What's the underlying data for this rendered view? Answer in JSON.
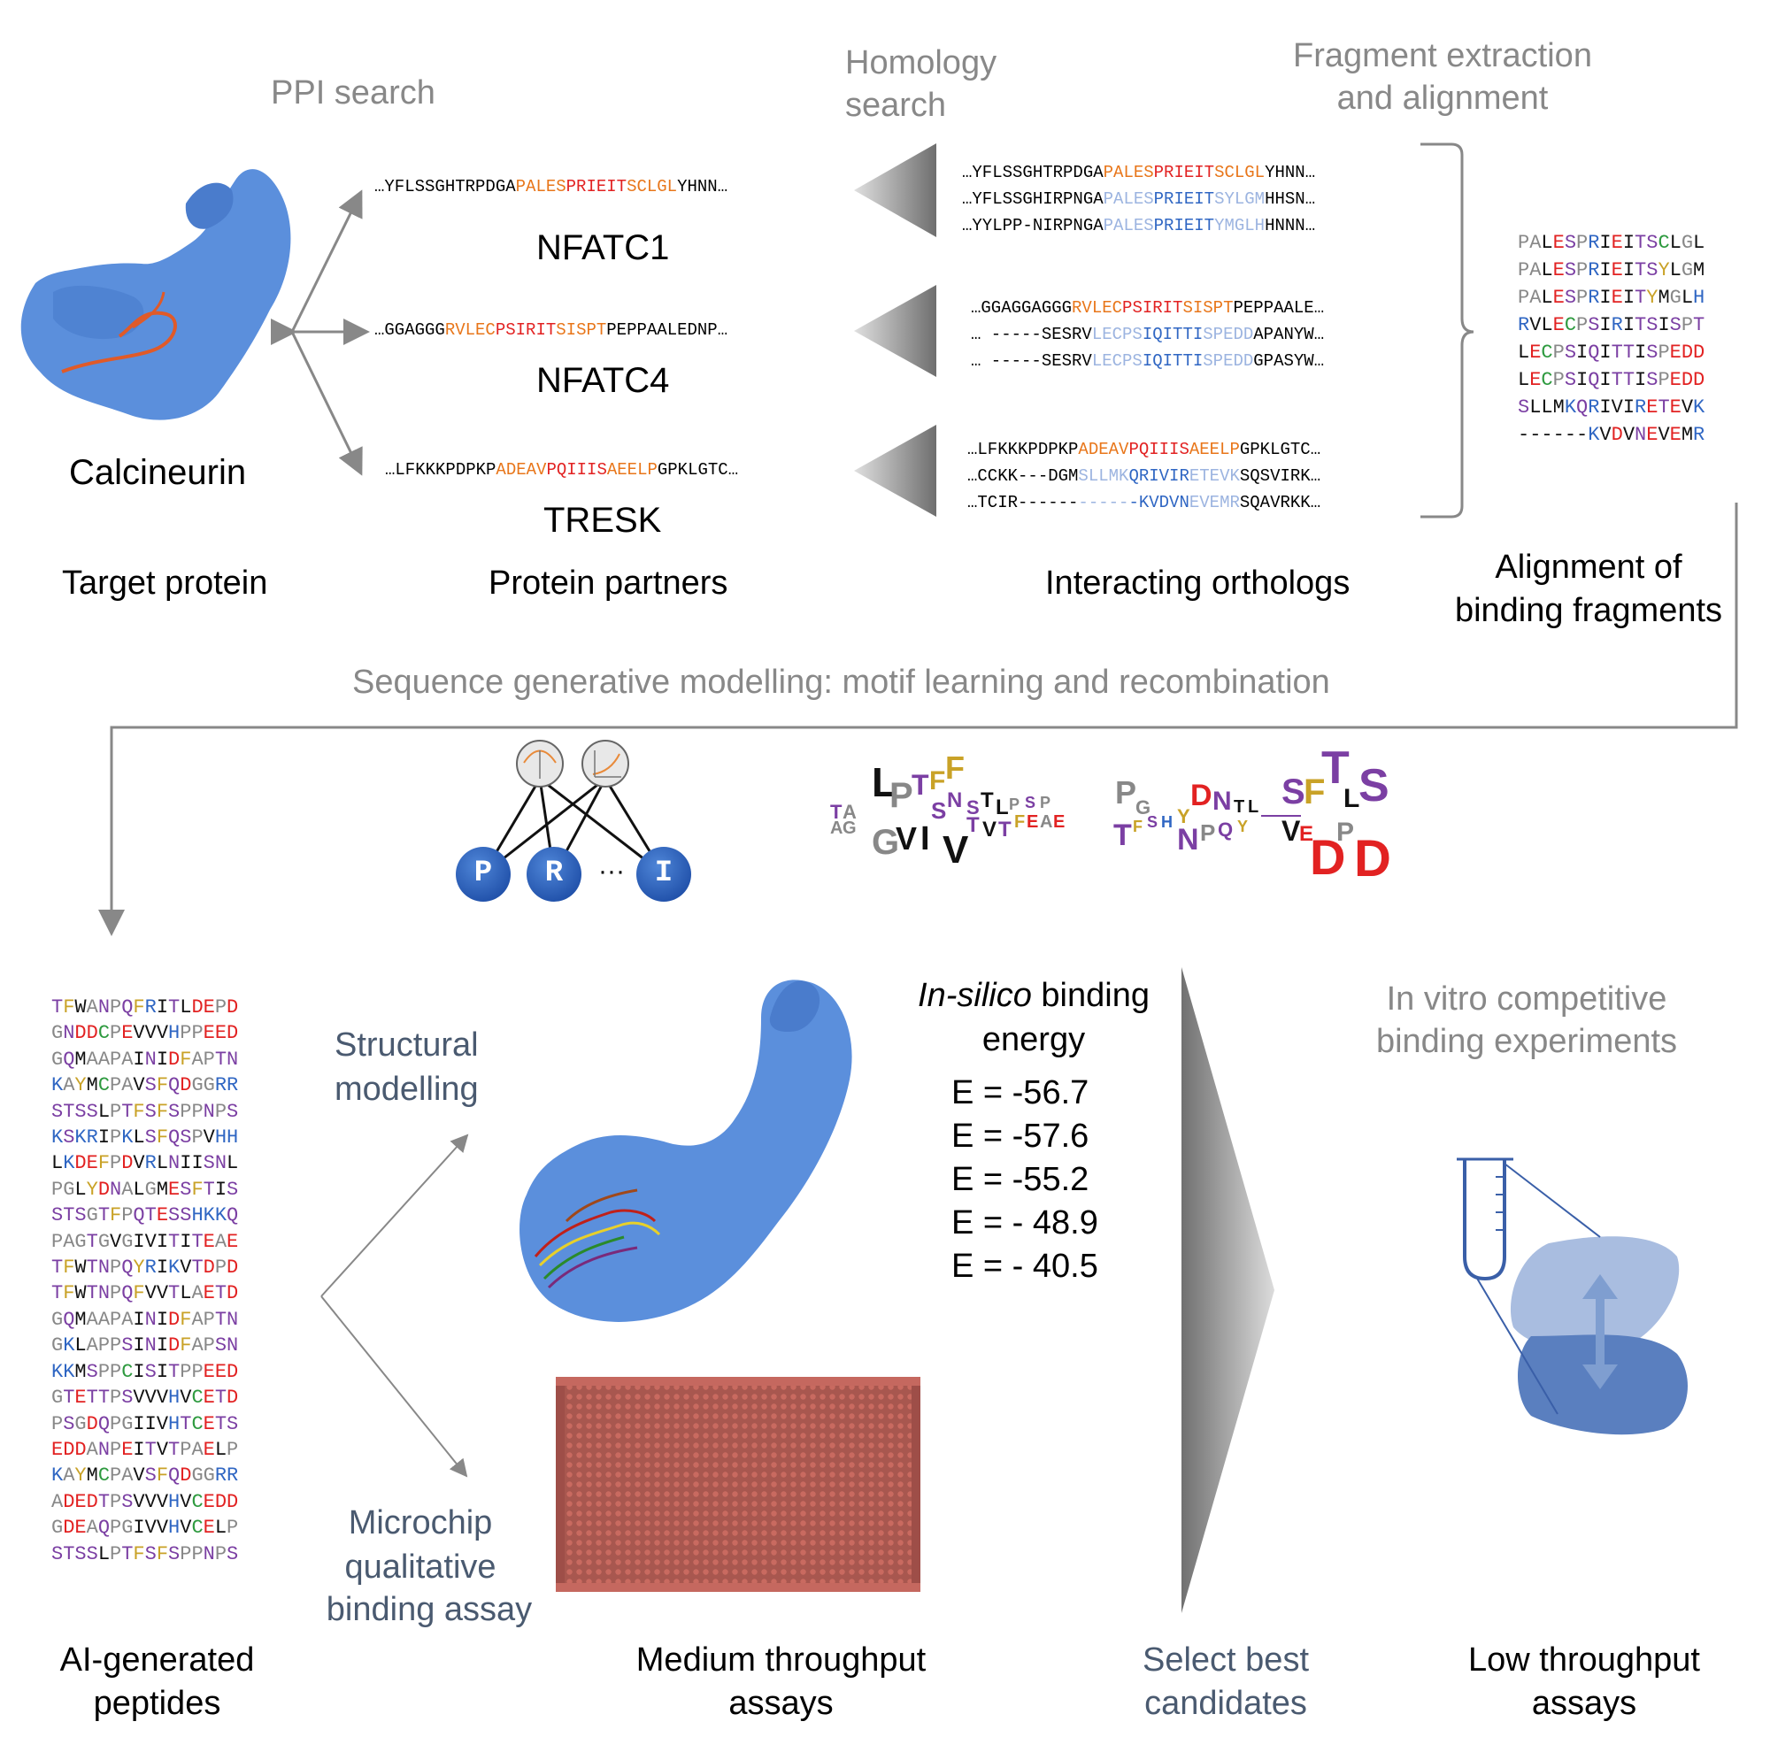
{
  "colors": {
    "protein_blue": "#5b8fdc",
    "orange": "#e8761a",
    "red": "#e22222",
    "lightblue": "#9cb4e0",
    "blue": "#2f66c3",
    "gray_text": "#888888",
    "slate_text": "#4a5a70",
    "aa_palette": {
      "A": "#888888",
      "P": "#888888",
      "L": "#111111",
      "E": "#e22222",
      "D": "#e22222",
      "S": "#7b3fa3",
      "R": "#2f66c3",
      "K": "#2f66c3",
      "H": "#2f66c3",
      "I": "#111111",
      "T": "#7b3fa3",
      "C": "#2e9a3f",
      "G": "#888888",
      "M": "#111111",
      "V": "#111111",
      "Q": "#7b3fa3",
      "N": "#7b3fa3",
      "Y": "#c9a227",
      "F": "#c9a227",
      "W": "#111111"
    }
  },
  "top": {
    "ppi_search": "PPI search",
    "homology_search": [
      "Homology",
      "search"
    ],
    "fragment_extraction": [
      "Fragment extraction",
      "and alignment"
    ],
    "calcineurin": "Calcineurin",
    "partners": [
      {
        "name": "NFATC1",
        "seq": [
          {
            "t": "…YFLSSGHTRPDGA",
            "c": "k"
          },
          {
            "t": "PALES",
            "c": "o"
          },
          {
            "t": "PRIEIT",
            "c": "r"
          },
          {
            "t": "SCLGL",
            "c": "o"
          },
          {
            "t": "YHNN…",
            "c": "k"
          }
        ]
      },
      {
        "name": "NFATC4",
        "seq": [
          {
            "t": "…GGAGGG",
            "c": "k"
          },
          {
            "t": "RVLEC",
            "c": "o"
          },
          {
            "t": "PSIRIT",
            "c": "r"
          },
          {
            "t": "SISPT",
            "c": "o"
          },
          {
            "t": "PEPPAALEDNP…",
            "c": "k"
          }
        ]
      },
      {
        "name": "TRESK",
        "seq": [
          {
            "t": "…LFKKKPDPKP",
            "c": "k"
          },
          {
            "t": "ADEAV",
            "c": "o"
          },
          {
            "t": "PQIIIS",
            "c": "r"
          },
          {
            "t": "AEELP",
            "c": "o"
          },
          {
            "t": "GPKLGTC…",
            "c": "k"
          }
        ]
      }
    ],
    "orthologs": [
      [
        [
          {
            "t": "…YFLSSGHTRPDGA",
            "c": "k"
          },
          {
            "t": "PALES",
            "c": "o"
          },
          {
            "t": "PRIEIT",
            "c": "r"
          },
          {
            "t": "SCLGL",
            "c": "o"
          },
          {
            "t": "YHNN…",
            "c": "k"
          }
        ],
        [
          {
            "t": "…YFLSSGHIRPNGA",
            "c": "k"
          },
          {
            "t": "PALES",
            "c": "lb"
          },
          {
            "t": "PRIEIT",
            "c": "b"
          },
          {
            "t": "SYLGM",
            "c": "lb"
          },
          {
            "t": "HHSN…",
            "c": "k"
          }
        ],
        [
          {
            "t": "…YYLPP-NIRPNGA",
            "c": "k"
          },
          {
            "t": "PALES",
            "c": "lb"
          },
          {
            "t": "PRIEIT",
            "c": "b"
          },
          {
            "t": "YMGLH",
            "c": "lb"
          },
          {
            "t": "HNNN…",
            "c": "k"
          }
        ]
      ],
      [
        [
          {
            "t": "…GGAGGAGGG",
            "c": "k"
          },
          {
            "t": "RVLEC",
            "c": "o"
          },
          {
            "t": "PSIRIT",
            "c": "r"
          },
          {
            "t": "SISPT",
            "c": "o"
          },
          {
            "t": "PEPPAALE…",
            "c": "k"
          }
        ],
        [
          {
            "t": "… -----SESRV",
            "c": "k"
          },
          {
            "t": "LECPS",
            "c": "lb"
          },
          {
            "t": "IQITTI",
            "c": "b"
          },
          {
            "t": "SPEDD",
            "c": "lb"
          },
          {
            "t": "APANYW…",
            "c": "k"
          }
        ],
        [
          {
            "t": "… -----SESRV",
            "c": "k"
          },
          {
            "t": "LECPS",
            "c": "lb"
          },
          {
            "t": "IQITTI",
            "c": "b"
          },
          {
            "t": "SPEDD",
            "c": "lb"
          },
          {
            "t": "GPASYW…",
            "c": "k"
          }
        ]
      ],
      [
        [
          {
            "t": "…LFKKKPDPKP",
            "c": "k"
          },
          {
            "t": "ADEAV",
            "c": "o"
          },
          {
            "t": "PQIIIS",
            "c": "r"
          },
          {
            "t": "AEELP",
            "c": "o"
          },
          {
            "t": "GPKLGTC…",
            "c": "k"
          }
        ],
        [
          {
            "t": "…CCKK---DGM",
            "c": "k"
          },
          {
            "t": "SLLMK",
            "c": "lb"
          },
          {
            "t": "QRIVIR",
            "c": "b"
          },
          {
            "t": "ETEVK",
            "c": "lb"
          },
          {
            "t": "SQSVIRK…",
            "c": "k"
          }
        ],
        [
          {
            "t": "…TCIR------",
            "c": "k"
          },
          {
            "t": "-----",
            "c": "lb"
          },
          {
            "t": "-KVDVN",
            "c": "b"
          },
          {
            "t": "EVEMR",
            "c": "lb"
          },
          {
            "t": "SQAVRKK…",
            "c": "k"
          }
        ]
      ]
    ],
    "alignment": [
      "PALESPRIEITSCLGL",
      "PALESPRIEITSYLGM",
      "PALESPRIEITYMGLH",
      "RVLECPSIRITSISPT",
      "LECPSIQITTISPEDD",
      "LECPSIQITTISPEDD",
      "SLLMKQRIVIRETEVK",
      "------KVDVNEVEMR"
    ],
    "captions": {
      "target": "Target protein",
      "partners": "Protein partners",
      "orthologs": "Interacting orthologs",
      "alignment": [
        "Alignment of",
        "binding fragments"
      ]
    }
  },
  "middle": {
    "title": "Sequence generative modelling: motif learning and recombination",
    "nodes": [
      "P",
      "R",
      "I"
    ],
    "ellipsis": "···"
  },
  "bottom": {
    "peptides": [
      "TFWANPQFRITLDEPD",
      "GNDDCPEVVVHPPEED",
      "GQMAAPAINIDFAPTN",
      "KAYMCPAVSFQDGGRR",
      "STSSLPTFSFSPPNPS",
      "KSKRIPKLSFQSPVHH",
      "LKDEFPDVRLNIISNL",
      "PGLYDNALGMESFTIS",
      "STSGTFPQTESSHKKQ",
      "PAGTGVGIVITITEAE",
      "TFWTNPQYRIKVTDPD",
      "TFWTNPQFVVTLAETD",
      "GQMAAPAINIDFAPTN",
      "GKLAPPSINIDFAPSN",
      "KKMSPPCISITPPEED",
      "GTETTPSVVVHVCETD",
      "PSGDQPGIIVHTCETS",
      "EDDANPEITVTPAELP",
      "KAYMCPAVSFQDGGRR",
      "ADEDTPSVVVHVCEDD",
      "GDEAQPGIVVHVCELP",
      "STSSLPTFSFSPPNPS"
    ],
    "structural_modelling": [
      "Structural",
      "modelling"
    ],
    "microchip": [
      "Microchip",
      "qualitative",
      "binding assay"
    ],
    "insilico": {
      "italic": "In-silico",
      "rest": " binding",
      "line2": "energy"
    },
    "energies": [
      "E = -56.7",
      "E = -57.6",
      "E = -55.2",
      "E = - 48.9",
      "E = - 40.5"
    ],
    "invitro": [
      "In vitro competitive",
      "binding experiments"
    ],
    "captions": {
      "ai": [
        "AI-generated",
        "peptides"
      ],
      "medium": [
        "Medium throughput",
        "assays"
      ],
      "select": [
        "Select best",
        "candidates"
      ],
      "low": [
        "Low throughput",
        "assays"
      ]
    }
  }
}
